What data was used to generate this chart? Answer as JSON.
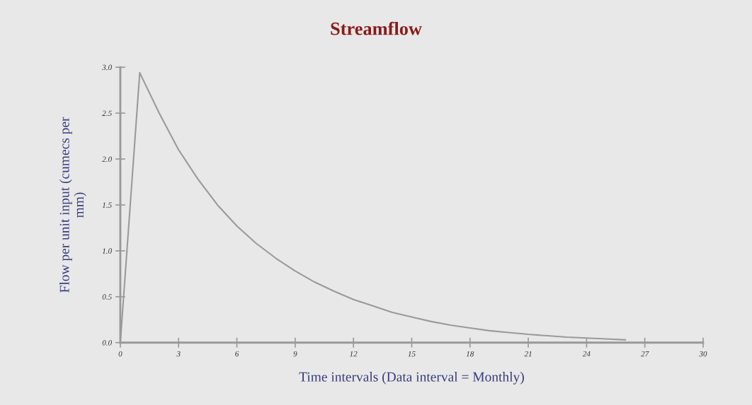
{
  "chart_data": {
    "type": "line",
    "title": "Streamflow",
    "xlabel": "Time intervals (Data interval = Monthly)",
    "ylabel": "Flow per unit input (cumecs per\nmm)",
    "x": [
      0,
      1,
      2,
      3,
      4,
      5,
      6,
      7,
      8,
      9,
      10,
      11,
      12,
      13,
      14,
      15,
      16,
      17,
      18,
      19,
      20,
      21,
      22,
      23,
      24,
      25,
      26
    ],
    "series": [
      {
        "color": "#9a9a9a",
        "values": [
          0,
          2.94,
          2.5,
          2.1,
          1.78,
          1.5,
          1.27,
          1.08,
          0.92,
          0.78,
          0.66,
          0.56,
          0.47,
          0.4,
          0.33,
          0.28,
          0.23,
          0.19,
          0.16,
          0.13,
          0.11,
          0.09,
          0.075,
          0.06,
          0.05,
          0.04,
          0.03
        ]
      }
    ],
    "xlim": [
      0,
      30
    ],
    "xticks": [
      0,
      3,
      6,
      9,
      12,
      15,
      18,
      21,
      24,
      27,
      30
    ],
    "ylim": [
      0,
      3
    ],
    "yticks": [
      {
        "value": 0,
        "label": "0.0"
      },
      0.5,
      {
        "value": 1,
        "label": "1.0"
      },
      1.5,
      {
        "value": 2,
        "label": "2.0"
      },
      2.5,
      {
        "value": 3,
        "label": "3.0"
      }
    ],
    "grid": false,
    "legend": false,
    "marker": "none",
    "line_style": "solid"
  }
}
